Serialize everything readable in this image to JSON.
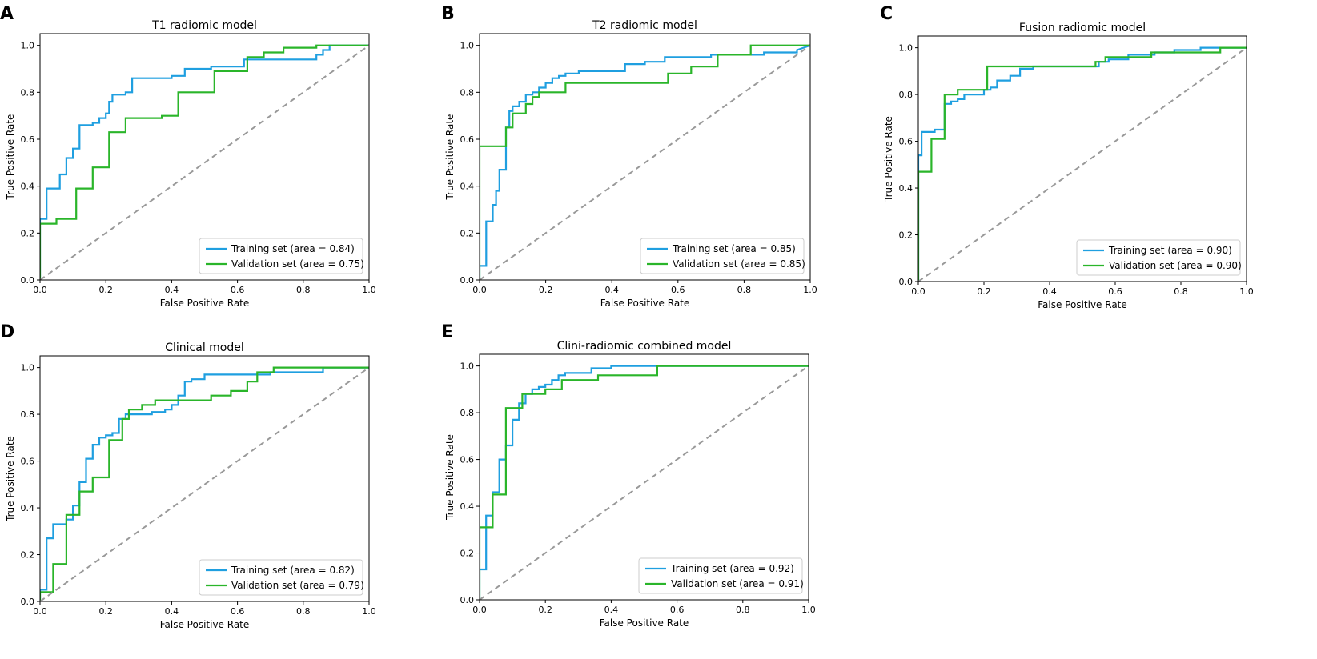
{
  "chart_data": [
    {
      "panel": "A",
      "type": "line",
      "title": "T1 radiomic model",
      "xlabel": "False Positive Rate",
      "ylabel": "True Positive Rate",
      "xlim": [
        0,
        1
      ],
      "ylim": [
        0,
        1.05
      ],
      "xticks": [
        "0.0",
        "0.2",
        "0.4",
        "0.6",
        "0.8",
        "1.0"
      ],
      "yticks": [
        "0.0",
        "0.2",
        "0.4",
        "0.6",
        "0.8",
        "1.0"
      ],
      "legend_position": "lower-right",
      "series": [
        {
          "name": "Training set (area = 0.84)",
          "color": "#1f9fe0",
          "x": [
            0,
            0,
            0.02,
            0.02,
            0.06,
            0.06,
            0.08,
            0.08,
            0.1,
            0.1,
            0.12,
            0.12,
            0.16,
            0.16,
            0.18,
            0.18,
            0.2,
            0.2,
            0.21,
            0.21,
            0.22,
            0.22,
            0.26,
            0.26,
            0.28,
            0.28,
            0.4,
            0.4,
            0.44,
            0.44,
            0.52,
            0.52,
            0.62,
            0.62,
            0.84,
            0.84,
            0.86,
            0.86,
            0.88,
            0.88,
            1.0
          ],
          "y": [
            0,
            0.26,
            0.26,
            0.39,
            0.39,
            0.45,
            0.45,
            0.52,
            0.52,
            0.56,
            0.56,
            0.66,
            0.66,
            0.67,
            0.67,
            0.69,
            0.69,
            0.71,
            0.71,
            0.76,
            0.76,
            0.79,
            0.79,
            0.8,
            0.8,
            0.86,
            0.86,
            0.87,
            0.87,
            0.9,
            0.9,
            0.91,
            0.91,
            0.94,
            0.94,
            0.96,
            0.96,
            0.98,
            0.98,
            1.0,
            1.0
          ]
        },
        {
          "name": "Validation set (area = 0.75)",
          "color": "#2ab52a",
          "x": [
            0,
            0,
            0.05,
            0.05,
            0.11,
            0.11,
            0.16,
            0.16,
            0.21,
            0.21,
            0.26,
            0.26,
            0.37,
            0.37,
            0.42,
            0.42,
            0.53,
            0.53,
            0.63,
            0.63,
            0.68,
            0.68,
            0.74,
            0.74,
            0.84,
            0.84,
            1.0
          ],
          "y": [
            0,
            0.24,
            0.24,
            0.26,
            0.26,
            0.39,
            0.39,
            0.48,
            0.48,
            0.63,
            0.63,
            0.69,
            0.69,
            0.7,
            0.7,
            0.8,
            0.8,
            0.89,
            0.89,
            0.95,
            0.95,
            0.97,
            0.97,
            0.99,
            0.99,
            1.0,
            1.0
          ]
        },
        {
          "name": "chance",
          "color": "#999999",
          "dashed": true,
          "x": [
            0,
            1
          ],
          "y": [
            0,
            1
          ]
        }
      ]
    },
    {
      "panel": "B",
      "type": "line",
      "title": "T2 radiomic model",
      "xlabel": "False Positive Rate",
      "ylabel": "True Positive Rate",
      "xlim": [
        0,
        1
      ],
      "ylim": [
        0,
        1.05
      ],
      "xticks": [
        "0.0",
        "0.2",
        "0.4",
        "0.6",
        "0.8",
        "1.0"
      ],
      "yticks": [
        "0.0",
        "0.2",
        "0.4",
        "0.6",
        "0.8",
        "1.0"
      ],
      "legend_position": "lower-right",
      "series": [
        {
          "name": "Training set (area = 0.85)",
          "color": "#1f9fe0",
          "x": [
            0,
            0,
            0.02,
            0.02,
            0.04,
            0.04,
            0.05,
            0.05,
            0.06,
            0.06,
            0.08,
            0.08,
            0.09,
            0.09,
            0.1,
            0.1,
            0.12,
            0.12,
            0.14,
            0.14,
            0.16,
            0.16,
            0.18,
            0.18,
            0.2,
            0.2,
            0.22,
            0.22,
            0.24,
            0.24,
            0.26,
            0.26,
            0.3,
            0.3,
            0.44,
            0.44,
            0.5,
            0.5,
            0.56,
            0.56,
            0.7,
            0.7,
            0.86,
            0.86,
            0.96,
            0.96,
            1.0
          ],
          "y": [
            0,
            0.06,
            0.06,
            0.25,
            0.25,
            0.32,
            0.32,
            0.38,
            0.38,
            0.47,
            0.47,
            0.65,
            0.65,
            0.72,
            0.72,
            0.74,
            0.74,
            0.76,
            0.76,
            0.79,
            0.79,
            0.8,
            0.8,
            0.82,
            0.82,
            0.84,
            0.84,
            0.86,
            0.86,
            0.87,
            0.87,
            0.88,
            0.88,
            0.89,
            0.89,
            0.92,
            0.92,
            0.93,
            0.93,
            0.95,
            0.95,
            0.96,
            0.96,
            0.97,
            0.97,
            0.98,
            1.0
          ]
        },
        {
          "name": "Validation set (area = 0.85)",
          "color": "#2ab52a",
          "x": [
            0,
            0,
            0.08,
            0.08,
            0.1,
            0.1,
            0.14,
            0.14,
            0.16,
            0.16,
            0.18,
            0.18,
            0.26,
            0.26,
            0.57,
            0.57,
            0.64,
            0.64,
            0.72,
            0.72,
            0.82,
            0.82,
            1.0
          ],
          "y": [
            0,
            0.57,
            0.57,
            0.65,
            0.65,
            0.71,
            0.71,
            0.75,
            0.75,
            0.78,
            0.78,
            0.8,
            0.8,
            0.84,
            0.84,
            0.88,
            0.88,
            0.91,
            0.91,
            0.96,
            0.96,
            1.0,
            1.0
          ]
        },
        {
          "name": "chance",
          "color": "#999999",
          "dashed": true,
          "x": [
            0,
            1
          ],
          "y": [
            0,
            1
          ]
        }
      ]
    },
    {
      "panel": "C",
      "type": "line",
      "title": "Fusion radiomic model",
      "xlabel": "False Positive Rate",
      "ylabel": "True Positive Rate",
      "xlim": [
        0,
        1
      ],
      "ylim": [
        0,
        1.05
      ],
      "xticks": [
        "0.0",
        "0.2",
        "0.4",
        "0.6",
        "0.8",
        "1.0"
      ],
      "yticks": [
        "0.0",
        "0.2",
        "0.4",
        "0.6",
        "0.8",
        "1.0"
      ],
      "legend_position": "lower-right",
      "series": [
        {
          "name": "Training set (area = 0.90)",
          "color": "#1f9fe0",
          "x": [
            0,
            0,
            0.01,
            0.01,
            0.05,
            0.05,
            0.08,
            0.08,
            0.1,
            0.1,
            0.12,
            0.12,
            0.14,
            0.14,
            0.2,
            0.2,
            0.22,
            0.22,
            0.24,
            0.24,
            0.28,
            0.28,
            0.31,
            0.31,
            0.35,
            0.35,
            0.55,
            0.55,
            0.58,
            0.58,
            0.64,
            0.64,
            0.72,
            0.72,
            0.78,
            0.78,
            0.86,
            0.86,
            1.0
          ],
          "y": [
            0,
            0.54,
            0.54,
            0.64,
            0.64,
            0.65,
            0.65,
            0.76,
            0.76,
            0.77,
            0.77,
            0.78,
            0.78,
            0.8,
            0.8,
            0.82,
            0.82,
            0.83,
            0.83,
            0.86,
            0.86,
            0.88,
            0.88,
            0.91,
            0.91,
            0.92,
            0.92,
            0.94,
            0.94,
            0.95,
            0.95,
            0.97,
            0.97,
            0.98,
            0.98,
            0.99,
            0.99,
            1.0,
            1.0
          ]
        },
        {
          "name": "Validation set (area = 0.90)",
          "color": "#2ab52a",
          "x": [
            0,
            0,
            0.04,
            0.04,
            0.08,
            0.08,
            0.12,
            0.12,
            0.21,
            0.21,
            0.54,
            0.54,
            0.57,
            0.57,
            0.71,
            0.71,
            0.92,
            0.92,
            1.0
          ],
          "y": [
            0,
            0.47,
            0.47,
            0.61,
            0.61,
            0.8,
            0.8,
            0.82,
            0.82,
            0.92,
            0.92,
            0.94,
            0.94,
            0.96,
            0.96,
            0.98,
            0.98,
            1.0,
            1.0
          ]
        },
        {
          "name": "chance",
          "color": "#999999",
          "dashed": true,
          "x": [
            0,
            1
          ],
          "y": [
            0,
            1
          ]
        }
      ]
    },
    {
      "panel": "D",
      "type": "line",
      "title": "Clinical model",
      "xlabel": "False Positive Rate",
      "ylabel": "True Positive Rate",
      "xlim": [
        0,
        1
      ],
      "ylim": [
        0,
        1.05
      ],
      "xticks": [
        "0.0",
        "0.2",
        "0.4",
        "0.6",
        "0.8",
        "1.0"
      ],
      "yticks": [
        "0.0",
        "0.2",
        "0.4",
        "0.6",
        "0.8",
        "1.0"
      ],
      "legend_position": "lower-right",
      "series": [
        {
          "name": "Training set (area = 0.82)",
          "color": "#1f9fe0",
          "x": [
            0,
            0,
            0.02,
            0.02,
            0.04,
            0.04,
            0.08,
            0.08,
            0.1,
            0.1,
            0.12,
            0.12,
            0.14,
            0.14,
            0.16,
            0.16,
            0.18,
            0.18,
            0.2,
            0.2,
            0.22,
            0.22,
            0.24,
            0.24,
            0.26,
            0.26,
            0.34,
            0.34,
            0.38,
            0.38,
            0.4,
            0.4,
            0.42,
            0.42,
            0.44,
            0.44,
            0.46,
            0.46,
            0.5,
            0.5,
            0.7,
            0.7,
            0.86,
            0.86,
            1.0
          ],
          "y": [
            0,
            0.05,
            0.05,
            0.27,
            0.27,
            0.33,
            0.33,
            0.35,
            0.35,
            0.41,
            0.41,
            0.51,
            0.51,
            0.61,
            0.61,
            0.67,
            0.67,
            0.7,
            0.7,
            0.71,
            0.71,
            0.72,
            0.72,
            0.78,
            0.78,
            0.8,
            0.8,
            0.81,
            0.81,
            0.82,
            0.82,
            0.84,
            0.84,
            0.88,
            0.88,
            0.94,
            0.94,
            0.95,
            0.95,
            0.97,
            0.97,
            0.98,
            0.98,
            1.0,
            1.0
          ]
        },
        {
          "name": "Validation set (area = 0.79)",
          "color": "#2ab52a",
          "x": [
            0,
            0,
            0.04,
            0.04,
            0.08,
            0.08,
            0.12,
            0.12,
            0.16,
            0.16,
            0.21,
            0.21,
            0.25,
            0.25,
            0.27,
            0.27,
            0.31,
            0.31,
            0.35,
            0.35,
            0.38,
            0.38,
            0.52,
            0.52,
            0.58,
            0.58,
            0.63,
            0.63,
            0.66,
            0.66,
            0.71,
            0.71,
            1.0
          ],
          "y": [
            0,
            0.04,
            0.04,
            0.16,
            0.16,
            0.37,
            0.37,
            0.47,
            0.47,
            0.53,
            0.53,
            0.69,
            0.69,
            0.78,
            0.78,
            0.82,
            0.82,
            0.84,
            0.84,
            0.86,
            0.86,
            0.86,
            0.86,
            0.88,
            0.88,
            0.9,
            0.9,
            0.94,
            0.94,
            0.98,
            0.98,
            1.0,
            1.0
          ]
        },
        {
          "name": "chance",
          "color": "#999999",
          "dashed": true,
          "x": [
            0,
            1
          ],
          "y": [
            0,
            1
          ]
        }
      ]
    },
    {
      "panel": "E",
      "type": "line",
      "title": "Clini-radiomic combined model",
      "xlabel": "False Positive Rate",
      "ylabel": "True Positive Rate",
      "xlim": [
        0,
        1
      ],
      "ylim": [
        0,
        1.05
      ],
      "xticks": [
        "0.0",
        "0.2",
        "0.4",
        "0.6",
        "0.8",
        "1.0"
      ],
      "yticks": [
        "0.0",
        "0.2",
        "0.4",
        "0.6",
        "0.8",
        "1.0"
      ],
      "legend_position": "lower-right",
      "series": [
        {
          "name": "Training set (area = 0.92)",
          "color": "#1f9fe0",
          "x": [
            0,
            0,
            0.02,
            0.02,
            0.04,
            0.04,
            0.06,
            0.06,
            0.08,
            0.08,
            0.1,
            0.1,
            0.12,
            0.12,
            0.14,
            0.14,
            0.16,
            0.16,
            0.18,
            0.18,
            0.2,
            0.2,
            0.22,
            0.22,
            0.24,
            0.24,
            0.26,
            0.26,
            0.28,
            0.28,
            0.34,
            0.34,
            0.4,
            0.4,
            0.54,
            0.54,
            1.0
          ],
          "y": [
            0,
            0.13,
            0.13,
            0.36,
            0.36,
            0.46,
            0.46,
            0.6,
            0.6,
            0.66,
            0.66,
            0.77,
            0.77,
            0.84,
            0.84,
            0.88,
            0.88,
            0.9,
            0.9,
            0.91,
            0.91,
            0.92,
            0.92,
            0.94,
            0.94,
            0.96,
            0.96,
            0.97,
            0.97,
            0.97,
            0.97,
            0.99,
            0.99,
            1.0,
            1.0,
            1.0,
            1.0
          ]
        },
        {
          "name": "Validation set (area = 0.91)",
          "color": "#2ab52a",
          "x": [
            0,
            0,
            0.04,
            0.04,
            0.08,
            0.08,
            0.13,
            0.13,
            0.2,
            0.2,
            0.25,
            0.25,
            0.36,
            0.36,
            0.54,
            0.54,
            1.0
          ],
          "y": [
            0,
            0.31,
            0.31,
            0.45,
            0.45,
            0.82,
            0.82,
            0.88,
            0.88,
            0.9,
            0.9,
            0.94,
            0.94,
            0.96,
            0.96,
            1.0,
            1.0
          ]
        },
        {
          "name": "chance",
          "color": "#999999",
          "dashed": true,
          "x": [
            0,
            1
          ],
          "y": [
            0,
            1
          ]
        }
      ]
    }
  ]
}
